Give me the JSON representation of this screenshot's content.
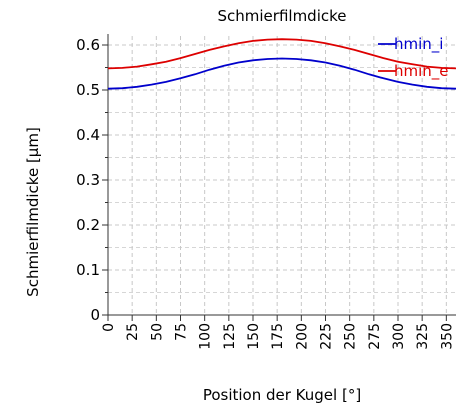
{
  "chart_data": {
    "type": "line",
    "title": "Schmierfilmdicke",
    "xlabel": "Position der Kugel [°]",
    "ylabel": "Schmierfilmdicke [µm]",
    "xlim": [
      0,
      360
    ],
    "ylim": [
      0,
      0.62
    ],
    "x_ticks": [
      0,
      25,
      50,
      75,
      100,
      125,
      150,
      175,
      200,
      225,
      250,
      275,
      300,
      325,
      350
    ],
    "y_ticks": [
      0,
      0.1,
      0.2,
      0.3,
      0.4,
      0.5,
      0.6
    ],
    "y_tick_labels": [
      "0",
      "0.1",
      "0.2",
      "0.3",
      "0.4",
      "0.5",
      "0.6"
    ],
    "grid": true,
    "legend_position": "top-right",
    "x": [
      0,
      15,
      30,
      45,
      60,
      75,
      90,
      105,
      120,
      135,
      150,
      165,
      180,
      195,
      210,
      225,
      240,
      255,
      270,
      285,
      300,
      315,
      330,
      345,
      360
    ],
    "series": [
      {
        "name": "hmin_i",
        "color": "#0000cc",
        "values": [
          0.503,
          0.504,
          0.507,
          0.512,
          0.518,
          0.526,
          0.535,
          0.545,
          0.554,
          0.561,
          0.566,
          0.569,
          0.57,
          0.569,
          0.566,
          0.561,
          0.554,
          0.545,
          0.535,
          0.526,
          0.518,
          0.512,
          0.507,
          0.504,
          0.503
        ]
      },
      {
        "name": "hmin_e",
        "color": "#dd0000",
        "values": [
          0.548,
          0.549,
          0.552,
          0.557,
          0.563,
          0.571,
          0.58,
          0.589,
          0.597,
          0.604,
          0.609,
          0.612,
          0.613,
          0.612,
          0.609,
          0.604,
          0.597,
          0.589,
          0.58,
          0.571,
          0.563,
          0.557,
          0.552,
          0.549,
          0.548
        ]
      }
    ]
  }
}
